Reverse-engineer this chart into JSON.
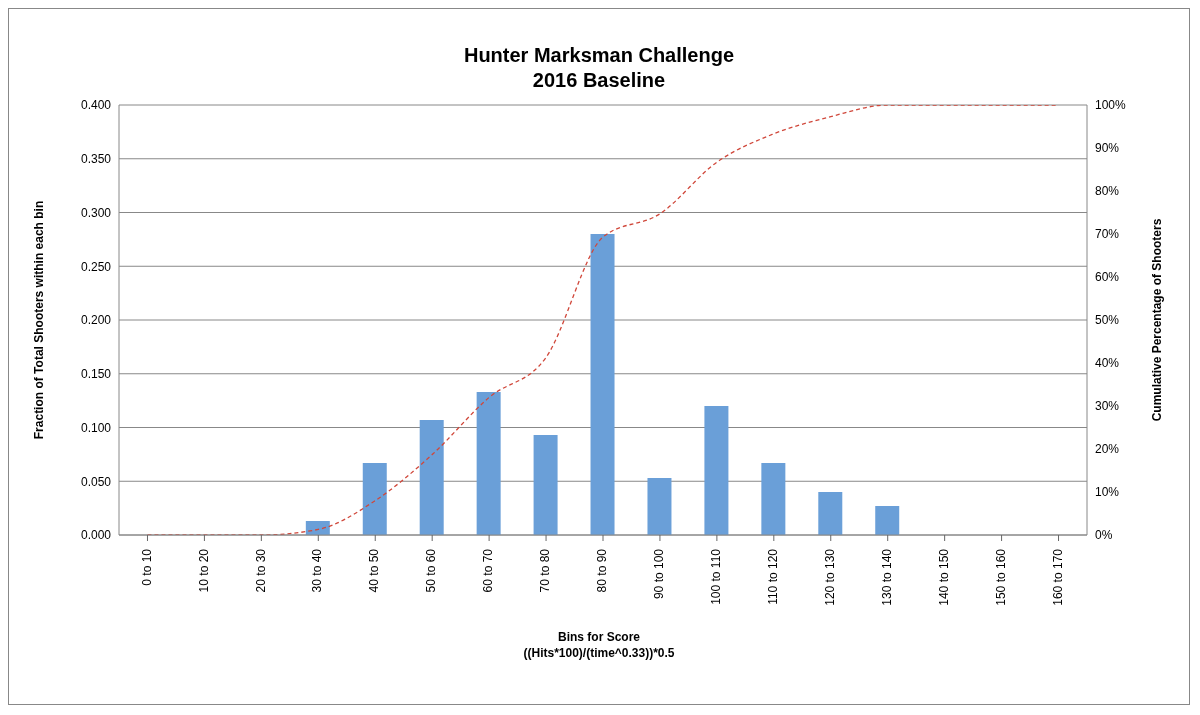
{
  "chart_data": {
    "type": "bar",
    "title": "Hunter Marksman Challenge",
    "subtitle": "2016 Baseline",
    "xlabel": "Bins for Score\n((Hits*100)/(time^0.33))*0.5",
    "ylabel": "Fraction of Total Shooters within each bin",
    "y2label": "Cumulative Percentage of Shooters",
    "categories": [
      "0 to 10",
      "10 to 20",
      "20 to 30",
      "30 to 40",
      "40 to 50",
      "50 to 60",
      "60 to 70",
      "70 to 80",
      "80 to 90",
      "90 to 100",
      "100 to 110",
      "110 to 120",
      "120 to 130",
      "130 to 140",
      "140 to 150",
      "150 to 160",
      "160 to 170"
    ],
    "series": [
      {
        "color": "#6a9fd8",
        "values": [
          0,
          0,
          0,
          0.013,
          0.067,
          0.107,
          0.133,
          0.093,
          0.28,
          0.053,
          0.12,
          0.067,
          0.04,
          0.027,
          0,
          0,
          0
        ]
      },
      {
        "type": "line",
        "axis": "y2",
        "color": "#d0473a",
        "line_style": "dashed",
        "values": [
          0,
          0,
          0,
          1.3,
          8,
          18.7,
          32,
          41.3,
          69.3,
          74.7,
          86.7,
          93.3,
          97.3,
          100,
          100,
          100,
          100
        ]
      }
    ],
    "ylim": [
      0,
      0.4
    ],
    "yticks": [
      {
        "value": 0,
        "label": "0.000"
      },
      {
        "value": 0.05,
        "label": "0.050"
      },
      {
        "value": 0.1,
        "label": "0.100"
      },
      {
        "value": 0.15,
        "label": "0.150"
      },
      {
        "value": 0.2,
        "label": "0.200"
      },
      {
        "value": 0.25,
        "label": "0.250"
      },
      {
        "value": 0.3,
        "label": "0.300"
      },
      {
        "value": 0.35,
        "label": "0.350"
      },
      {
        "value": 0.4,
        "label": "0.400"
      }
    ],
    "y2lim": [
      0,
      100
    ],
    "y2ticks": [
      {
        "value": 0,
        "label": "0%"
      },
      {
        "value": 10,
        "label": "10%"
      },
      {
        "value": 20,
        "label": "20%"
      },
      {
        "value": 30,
        "label": "30%"
      },
      {
        "value": 40,
        "label": "40%"
      },
      {
        "value": 50,
        "label": "50%"
      },
      {
        "value": 60,
        "label": "60%"
      },
      {
        "value": 70,
        "label": "70%"
      },
      {
        "value": 80,
        "label": "80%"
      },
      {
        "value": 90,
        "label": "90%"
      },
      {
        "value": 100,
        "label": "100%"
      }
    ],
    "grid": "y",
    "legend": false
  }
}
